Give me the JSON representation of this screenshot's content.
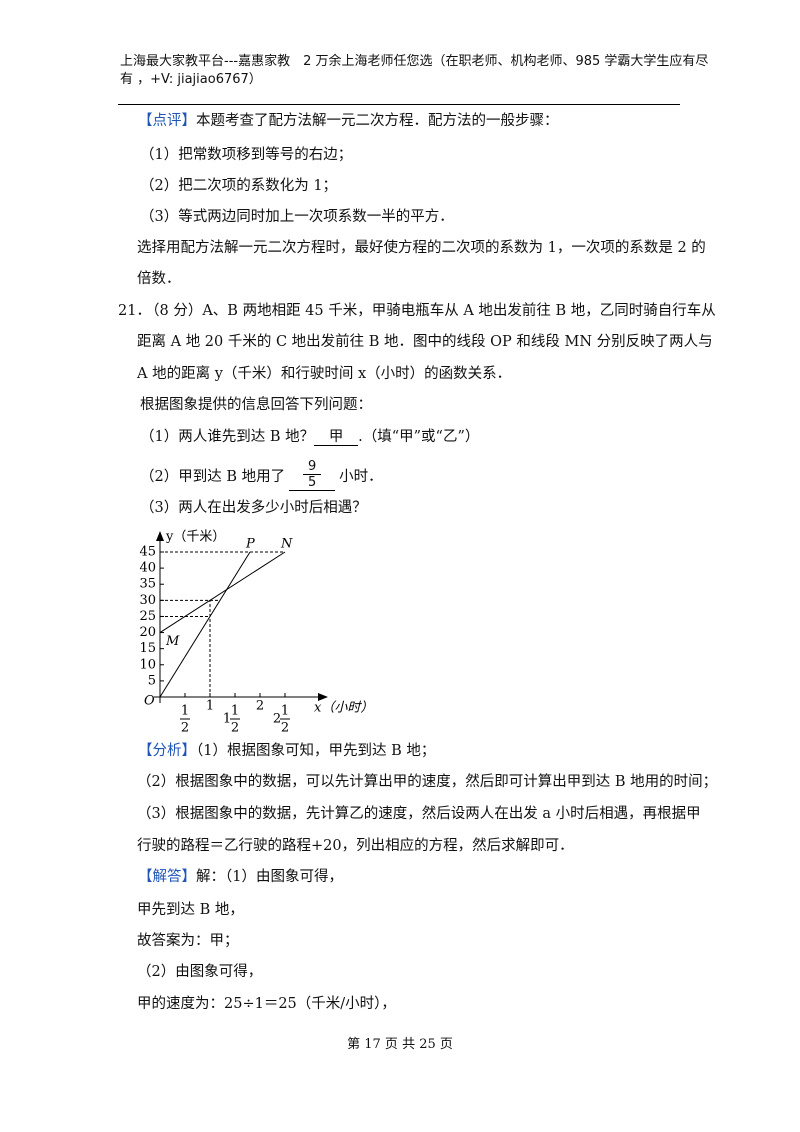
{
  "header": {
    "line1": "上海最大家教平台---嘉惠家教　2 万余上海老师任您选（在职老师、机构老师、985 学霸大学生应有尽",
    "line2": "有 ，+V: jiajiao6767）"
  },
  "review": {
    "tag": "【点评】",
    "text": "本题考查了配方法解一元二次方程．配方法的一般步骤：",
    "steps": [
      "（1）把常数项移到等号的右边；",
      "（2）把二次项的系数化为 1；",
      "（3）等式两边同时加上一次项系数一半的平方．"
    ],
    "note": [
      "选择用配方法解一元二次方程时，最好使方程的二次项的系数为 1，一次项的系数是 2 的",
      "倍数．"
    ]
  },
  "problem": {
    "number": "21．",
    "lines": [
      "（8 分）A、B 两地相距 45 千米，甲骑电瓶车从 A 地出发前往 B 地，乙同时骑自行车从",
      "距离 A 地 20 千米的 C 地出发前往 B 地．图中的线段 OP 和线段 MN 分别反映了两人与",
      "A 地的距离 y（千米）和行驶时间 x（小时）的函数关系．"
    ],
    "prompt": "根据图象提供的信息回答下列问题：",
    "q1": {
      "prefix": "（1）两人谁先到达 B 地？",
      "answer": "甲",
      "suffix": ".（填“甲”或“乙”）"
    },
    "q2": {
      "prefix": "（2）甲到达 B 地用了",
      "num": "9",
      "den": "5",
      "suffix": "小时．"
    },
    "q3": "（3）两人在出发多少小时后相遇？"
  },
  "figure": {
    "y_label": "y（千米）",
    "x_label": "x（小时）",
    "origin": "O",
    "yticks": [
      5,
      10,
      15,
      20,
      25,
      30,
      35,
      40,
      45
    ],
    "xticks": [
      {
        "value": 0.5,
        "whole": "",
        "num": "1",
        "den": "2"
      },
      {
        "value": 1,
        "label": "1"
      },
      {
        "value": 1.5,
        "whole": "1",
        "num": "1",
        "den": "2"
      },
      {
        "value": 2,
        "label": "2"
      },
      {
        "value": 2.5,
        "whole": "2",
        "num": "1",
        "den": "2"
      }
    ],
    "segments": [
      {
        "start": "O",
        "end": "P",
        "x": [
          0,
          1.8
        ],
        "y": [
          0,
          45
        ]
      },
      {
        "start": "M",
        "end": "N",
        "x": [
          0,
          2.5
        ],
        "y": [
          20,
          45
        ]
      }
    ],
    "dashed_y": [
      45,
      30,
      25
    ],
    "dashed_x": [
      1
    ]
  },
  "analysis": {
    "tag": "【分析】",
    "lines": [
      "（1）根据图象可知，甲先到达 B 地；",
      "（2）根据图象中的数据，可以先计算出甲的速度，然后即可计算出甲到达 B 地用的时间；",
      "（3）根据图象中的数据，先计算乙的速度，然后设两人在出发 a 小时后相遇，再根据甲",
      "行驶的路程＝乙行驶的路程+20，列出相应的方程，然后求解即可．"
    ]
  },
  "solution": {
    "tag": "【解答】",
    "text": "解：（1）由图象可得，",
    "lines": [
      "甲先到达 B 地，",
      "故答案为：甲；",
      "（2）由图象可得，",
      "甲的速度为：25÷1＝25（千米/小时），"
    ]
  },
  "footer": "第 17 页 共 25 页"
}
